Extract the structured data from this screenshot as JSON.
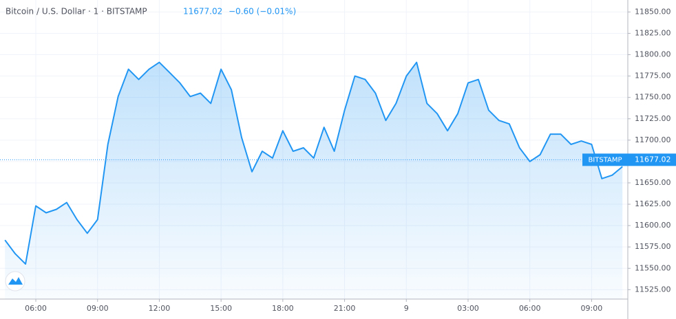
{
  "chart_data": {
    "type": "area",
    "title": "Bitcoin / U.S. Dollar · 1 · BITSTAMP",
    "last_price": 11677.02,
    "change": "−0.60 (−0.01%)",
    "exchange_tag": "BITSTAMP",
    "color": "#2196f3",
    "grid": true,
    "x": [
      4.5,
      5,
      5.5,
      6,
      6.5,
      7,
      7.5,
      8,
      8.5,
      9,
      9.5,
      10,
      10.5,
      11,
      11.5,
      12,
      12.5,
      13,
      13.5,
      14,
      14.5,
      15,
      15.5,
      16,
      16.5,
      17,
      17.5,
      18,
      18.5,
      19,
      19.5,
      20,
      20.5,
      21,
      21.5,
      22,
      22.5,
      23,
      23.5,
      24,
      24.5,
      25,
      25.5,
      26,
      26.5,
      27,
      27.5,
      28,
      28.5,
      29,
      29.5,
      30,
      30.5,
      31,
      31.5,
      32,
      32.5,
      33,
      33.5,
      34,
      34.5
    ],
    "values": [
      11583,
      11567,
      11555,
      11623,
      11615,
      11619,
      11627,
      11607,
      11591,
      11607,
      11695,
      11751,
      11783,
      11771,
      11783,
      11791,
      11779,
      11767,
      11751,
      11755,
      11743,
      11783,
      11759,
      11703,
      11663,
      11687,
      11679,
      11711,
      11687,
      11691,
      11679,
      11715,
      11687,
      11735,
      11775,
      11771,
      11755,
      11723,
      11743,
      11775,
      11791,
      11743,
      11731,
      11711,
      11731,
      11767,
      11771,
      11735,
      11723,
      11719,
      11691,
      11675,
      11683,
      11707,
      11707,
      11695,
      11699,
      11695,
      11655,
      11659,
      11669
    ],
    "xlim": [
      4.26,
      34.76
    ],
    "xticks": [
      {
        "value": 6,
        "label": "06:00"
      },
      {
        "value": 9,
        "label": "09:00"
      },
      {
        "value": 12,
        "label": "12:00"
      },
      {
        "value": 15,
        "label": "15:00"
      },
      {
        "value": 18,
        "label": "18:00"
      },
      {
        "value": 21,
        "label": "21:00"
      },
      {
        "value": 24,
        "label": "9"
      },
      {
        "value": 27,
        "label": "03:00"
      },
      {
        "value": 30,
        "label": "06:00"
      },
      {
        "value": 33,
        "label": "09:00"
      }
    ],
    "ylim": [
      11514,
      11864
    ],
    "yticks": [
      {
        "value": 11525,
        "label": "11525.00"
      },
      {
        "value": 11550,
        "label": "11550.00"
      },
      {
        "value": 11575,
        "label": "11575.00"
      },
      {
        "value": 11600,
        "label": "11600.00"
      },
      {
        "value": 11625,
        "label": "11625.00"
      },
      {
        "value": 11650,
        "label": "11650.00"
      },
      {
        "value": 11675,
        "label": "11675.00"
      },
      {
        "value": 11700,
        "label": "11700.00"
      },
      {
        "value": 11725,
        "label": "11725.00"
      },
      {
        "value": 11750,
        "label": "11750.00"
      },
      {
        "value": 11775,
        "label": "11775.00"
      },
      {
        "value": 11800,
        "label": "11800.00"
      },
      {
        "value": 11825,
        "label": "11825.00"
      },
      {
        "value": 11850,
        "label": "11850.00"
      }
    ]
  }
}
